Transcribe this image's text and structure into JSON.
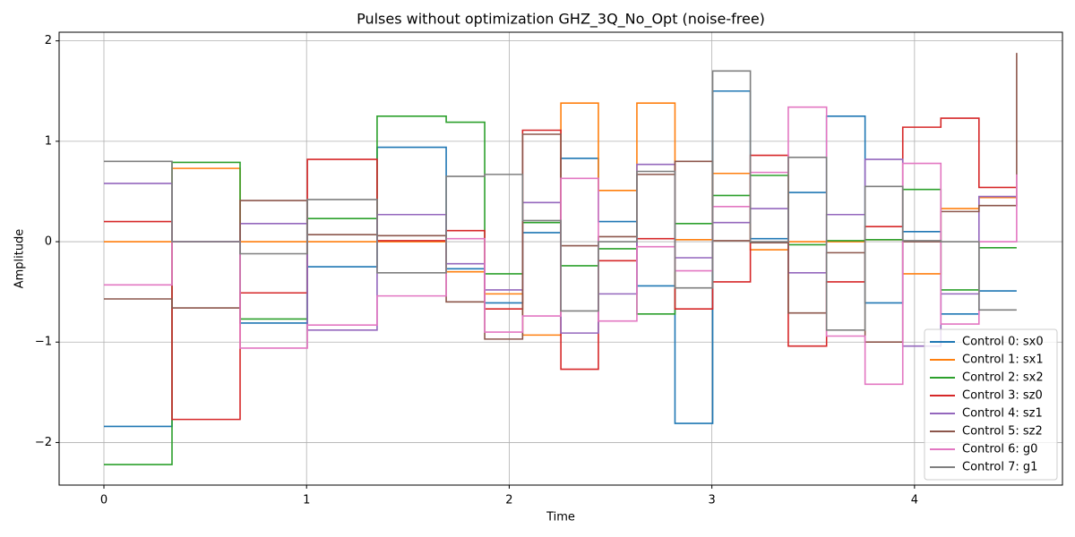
{
  "chart_data": {
    "type": "step",
    "title": "Pulses without optimization GHZ_3Q_No_Opt (noise-free)",
    "x_label": "Time",
    "y_label": "Amplitude",
    "x": [
      0,
      0.336,
      0.672,
      1.004,
      1.348,
      1.689,
      1.879,
      2.066,
      2.255,
      2.44,
      2.63,
      2.818,
      3.004,
      3.19,
      3.377,
      3.566,
      3.756,
      3.942,
      4.13,
      4.318,
      4.504
    ],
    "series": [
      {
        "name": "Control 0: sx0",
        "color": "#1f77b4",
        "values": [
          -1.84,
          0,
          -0.81,
          -0.25,
          0.94,
          -0.27,
          -0.61,
          0.09,
          0.83,
          0.2,
          -0.44,
          -1.81,
          1.5,
          0.03,
          0.49,
          1.25,
          -0.61,
          0.1,
          -0.72,
          -0.49,
          -0.49
        ]
      },
      {
        "name": "Control 1: sx1",
        "color": "#ff7f0e",
        "values": [
          0,
          0.73,
          0,
          0,
          0,
          -0.3,
          -0.52,
          -0.93,
          1.38,
          0.51,
          1.38,
          0.02,
          0.68,
          -0.08,
          0,
          0,
          0.02,
          -0.32,
          0.33,
          0.44,
          0.44
        ]
      },
      {
        "name": "Control 2: sx2",
        "color": "#2ca02c",
        "values": [
          -2.22,
          0.79,
          -0.77,
          0.23,
          1.25,
          1.19,
          -0.32,
          0.19,
          -0.24,
          -0.07,
          -0.72,
          0.18,
          0.46,
          0.66,
          -0.03,
          0.01,
          0.02,
          0.52,
          -0.48,
          -0.06,
          -0.06
        ]
      },
      {
        "name": "Control 3: sz0",
        "color": "#d62728",
        "values": [
          0.2,
          -1.77,
          -0.51,
          0.82,
          0.01,
          0.11,
          -0.67,
          1.11,
          -1.27,
          -0.19,
          0.03,
          -0.67,
          -0.4,
          0.86,
          -1.04,
          -0.4,
          0.15,
          1.14,
          1.23,
          0.54,
          0.54
        ]
      },
      {
        "name": "Control 4: sz1",
        "color": "#9467bd",
        "values": [
          0.58,
          0,
          0.18,
          -0.88,
          0.27,
          -0.22,
          -0.48,
          0.39,
          -0.91,
          -0.52,
          0.77,
          -0.16,
          0.19,
          0.33,
          -0.31,
          0.27,
          0.82,
          -1.04,
          -0.52,
          0.45,
          0.45
        ]
      },
      {
        "name": "Control 5: sz2",
        "color": "#8c564b",
        "values": [
          -0.57,
          -0.66,
          0.41,
          0.07,
          0.06,
          -0.6,
          -0.97,
          1.07,
          -0.04,
          0.05,
          0.67,
          0.8,
          0.01,
          -0.01,
          -0.71,
          -0.11,
          -1.0,
          0,
          0.3,
          0.36,
          1.88
        ]
      },
      {
        "name": "Control 6: g0",
        "color": "#e377c2",
        "values": [
          -0.43,
          0,
          -1.06,
          -0.83,
          -0.54,
          0.03,
          -0.9,
          -0.74,
          0.63,
          -0.79,
          -0.05,
          -0.29,
          0.35,
          0.69,
          1.34,
          -0.94,
          -1.42,
          0.78,
          -0.82,
          0,
          0.67
        ]
      },
      {
        "name": "Control 7: g1",
        "color": "#7f7f7f",
        "values": [
          0.8,
          0,
          -0.12,
          0.42,
          -0.31,
          0.65,
          0.67,
          0.21,
          -0.69,
          0,
          0.7,
          -0.46,
          1.7,
          0,
          0.84,
          -0.88,
          0.55,
          0.01,
          0,
          -0.68,
          -0.68
        ]
      }
    ],
    "xlim": [
      -0.221,
      4.73
    ],
    "ylim": [
      -2.424,
      2.086
    ],
    "xticks": [
      0,
      1,
      2,
      3,
      4
    ],
    "yticks": [
      -2,
      -1,
      0,
      1,
      2
    ],
    "yticklabels": [
      {
        "value": -2,
        "label": "−2"
      },
      {
        "value": -1,
        "label": "−1"
      }
    ],
    "grid": true,
    "legend": "lower right"
  }
}
